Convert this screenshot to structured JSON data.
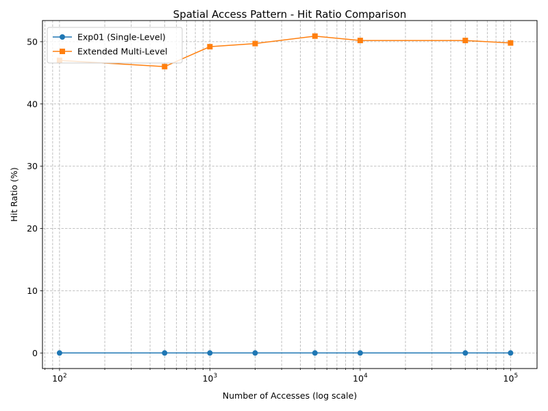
{
  "chart_data": {
    "type": "line",
    "title": "Spatial Access Pattern - Hit Ratio Comparison",
    "xlabel": "Number of Accesses (log scale)",
    "ylabel": "Hit Ratio (%)",
    "x_scale": "log",
    "xlim": [
      77,
      150000
    ],
    "ylim": [
      -2.5,
      53.4
    ],
    "x_ticks": [
      {
        "value": 100,
        "base": "10",
        "exp": "2"
      },
      {
        "value": 1000,
        "base": "10",
        "exp": "3"
      },
      {
        "value": 10000,
        "base": "10",
        "exp": "4"
      },
      {
        "value": 100000,
        "base": "10",
        "exp": "5"
      }
    ],
    "y_ticks": [
      0,
      10,
      20,
      30,
      40,
      50
    ],
    "grid": true,
    "legend_position": "top-left",
    "x": [
      100,
      500,
      1000,
      2000,
      5000,
      10000,
      50000,
      100000
    ],
    "series": [
      {
        "name": "Exp01 (Single-Level)",
        "color": "#1f77b4",
        "marker": "circle",
        "values": [
          0,
          0,
          0,
          0,
          0,
          0,
          0,
          0
        ]
      },
      {
        "name": "Extended Multi-Level",
        "color": "#ff7f0e",
        "marker": "square",
        "values": [
          47.0,
          46.0,
          49.2,
          49.7,
          50.9,
          50.2,
          50.2,
          49.8
        ]
      }
    ]
  }
}
